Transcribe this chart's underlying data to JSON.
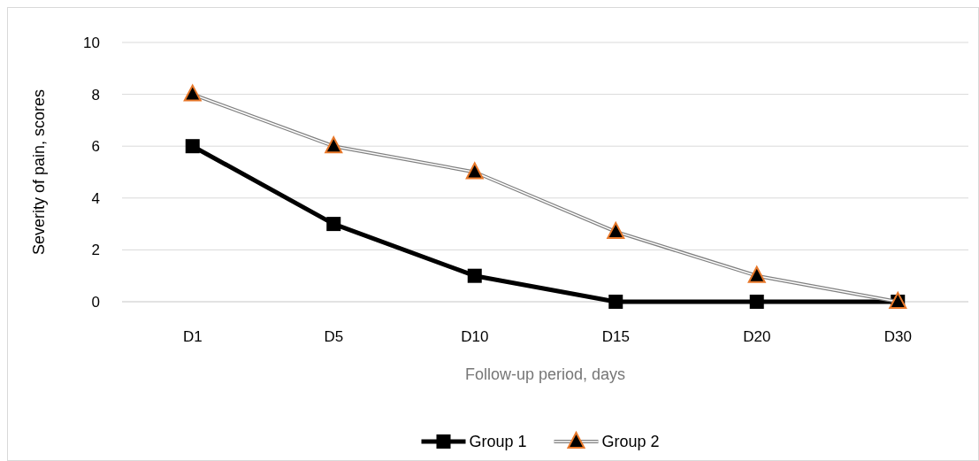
{
  "chart_data": {
    "type": "line",
    "xlabel": "Follow-up period, days",
    "ylabel": "Severity of pain, scores",
    "categories": [
      "D1",
      "D5",
      "D10",
      "D15",
      "D20",
      "D30"
    ],
    "series": [
      {
        "name": "Group 1",
        "color": "#000000",
        "marker": "square",
        "values": [
          6,
          3,
          1,
          0,
          0,
          0
        ]
      },
      {
        "name": "Group 2",
        "color": "#808080",
        "marker": "triangle",
        "values": [
          8,
          6,
          5,
          2.7,
          1,
          0
        ]
      }
    ],
    "ylim": [
      0,
      10
    ],
    "yticks": [
      0,
      2,
      4,
      6,
      8,
      10
    ],
    "grid": "y",
    "legend": "bottom"
  }
}
